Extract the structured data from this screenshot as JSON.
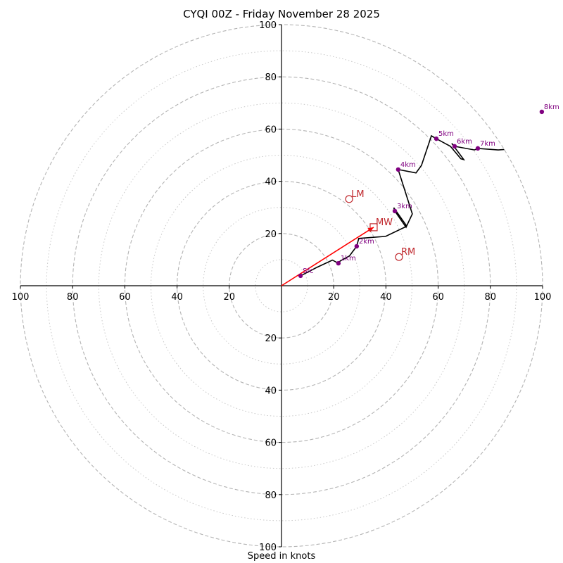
{
  "chart_data": {
    "type": "line",
    "subtype": "hodograph",
    "title": "CYQI 00Z - Friday November 28 2025",
    "xlabel": "Speed in knots",
    "ylabel": "",
    "range": [
      -100,
      100
    ],
    "ring_major": [
      20,
      40,
      60,
      80,
      100
    ],
    "ring_minor": [
      10,
      30,
      50,
      70,
      90
    ],
    "x_tick_labels": [
      "100",
      "80",
      "60",
      "40",
      "20",
      "20",
      "40",
      "60",
      "80",
      "100"
    ],
    "x_tick_values": [
      -100,
      -80,
      -60,
      -40,
      -20,
      20,
      40,
      60,
      80,
      100
    ],
    "y_tick_labels": [
      "100",
      "80",
      "60",
      "40",
      "20",
      "20",
      "40",
      "60",
      "80",
      "100"
    ],
    "y_tick_values": [
      100,
      80,
      60,
      40,
      20,
      -20,
      -40,
      -60,
      -80,
      -100
    ],
    "grid": true,
    "trace": {
      "name": "hodograph",
      "color": "#000000",
      "points": [
        [
          7.3,
          3.8
        ],
        [
          13.5,
          7.0
        ],
        [
          19.5,
          9.8
        ],
        [
          21.8,
          8.6
        ],
        [
          22.5,
          9.5
        ],
        [
          26.0,
          11.4
        ],
        [
          28.8,
          15.1
        ],
        [
          29.6,
          18.1
        ],
        [
          39.9,
          18.9
        ],
        [
          47.2,
          22.4
        ],
        [
          47.7,
          23.2
        ],
        [
          43.0,
          29.9
        ],
        [
          43.4,
          28.6
        ],
        [
          47.7,
          22.4
        ],
        [
          50.1,
          27.5
        ],
        [
          44.7,
          44.5
        ],
        [
          51.5,
          43.2
        ],
        [
          53.6,
          46.1
        ],
        [
          57.4,
          57.4
        ],
        [
          59.3,
          56.3
        ],
        [
          64.7,
          53.4
        ],
        [
          68.7,
          48.6
        ],
        [
          69.8,
          48.3
        ],
        [
          65.2,
          54.5
        ],
        [
          66.3,
          53.4
        ],
        [
          73.9,
          52.0
        ],
        [
          75.2,
          52.6
        ],
        [
          83.0,
          52.0
        ],
        [
          91.1,
          52.6
        ],
        [
          99.7,
          66.6
        ]
      ]
    },
    "height_markers": [
      {
        "label": "Sfc",
        "u": 7.3,
        "v": 3.8
      },
      {
        "label": "1km",
        "u": 21.8,
        "v": 8.6
      },
      {
        "label": "2km",
        "u": 28.8,
        "v": 15.1
      },
      {
        "label": "3km",
        "u": 43.4,
        "v": 28.6
      },
      {
        "label": "4km",
        "u": 44.7,
        "v": 44.5
      },
      {
        "label": "5km",
        "u": 59.3,
        "v": 56.3
      },
      {
        "label": "6km",
        "u": 66.3,
        "v": 53.4
      },
      {
        "label": "7km",
        "u": 75.2,
        "v": 52.6
      },
      {
        "label": "8km",
        "u": 99.7,
        "v": 66.6
      }
    ],
    "marker_color": "#800080",
    "storm_motion": [
      {
        "label": "MW",
        "u": 35.3,
        "v": 22.4,
        "marker": "square"
      },
      {
        "label": "LM",
        "u": 25.9,
        "v": 33.2,
        "marker": "circle"
      },
      {
        "label": "RM",
        "u": 45.0,
        "v": 11.0,
        "marker": "circle"
      }
    ],
    "storm_color": "#c0282d",
    "mean_wind_vector": {
      "from": [
        0,
        0
      ],
      "to": [
        35.3,
        22.4
      ],
      "color": "#ff0000"
    }
  }
}
